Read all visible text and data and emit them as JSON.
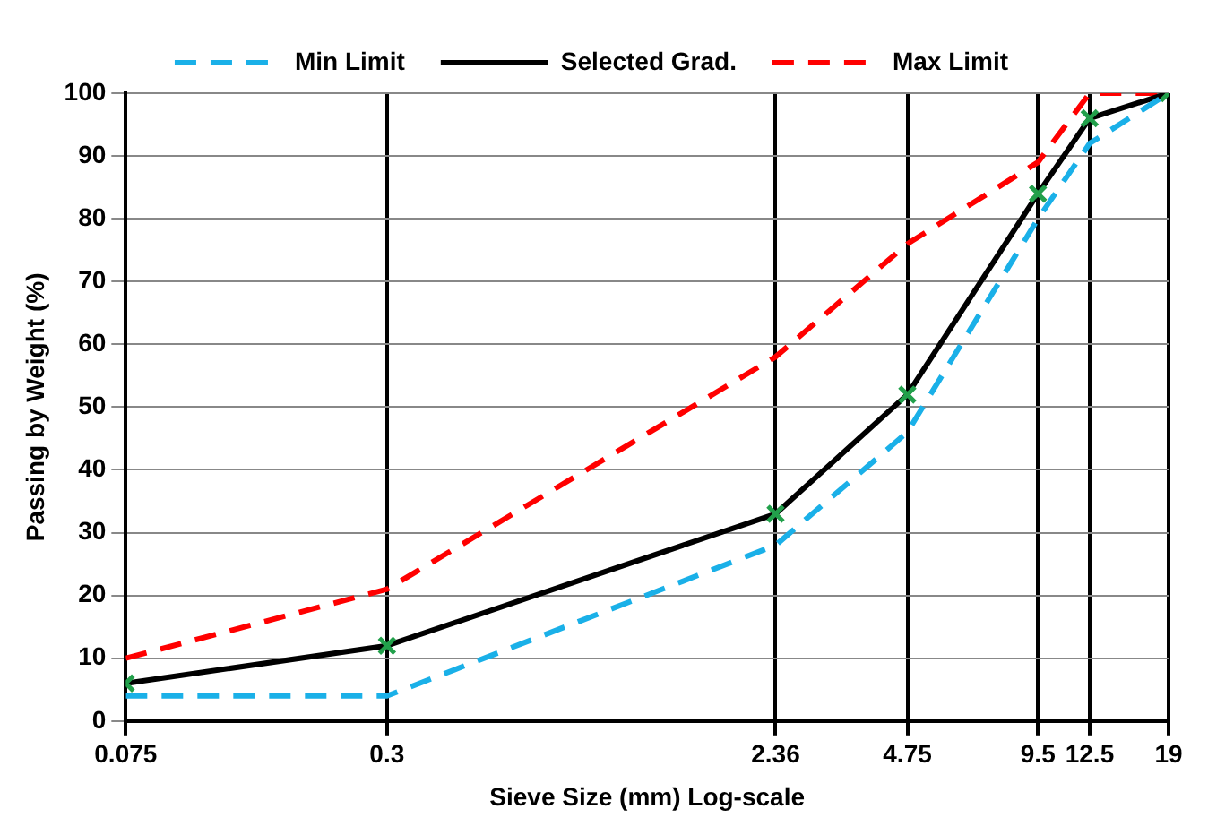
{
  "chart_data": {
    "type": "line",
    "xlabel": "Sieve Size (mm) Log-scale",
    "ylabel": "Passing by Weight (%)",
    "x": [
      0.075,
      0.3,
      2.36,
      4.75,
      9.5,
      12.5,
      19
    ],
    "series": [
      {
        "name": "Min Limit",
        "color": "#1ab0e8",
        "line_style": "dashed",
        "marker": "none",
        "values": [
          4,
          4,
          28,
          46,
          80,
          92,
          100
        ]
      },
      {
        "name": "Selected Grad.",
        "color": "#000000",
        "line_style": "solid",
        "marker": "cross",
        "values": [
          6,
          12,
          33,
          52,
          84,
          96,
          100
        ]
      },
      {
        "name": "Max Limit",
        "color": "#ff0000",
        "line_style": "dashed",
        "marker": "none",
        "values": [
          10,
          21,
          58,
          76,
          89,
          100,
          100
        ]
      }
    ],
    "log": "x",
    "xlim": [
      0.075,
      19
    ],
    "xticks": [
      0.075,
      0.3,
      2.36,
      4.75,
      9.5,
      12.5,
      19
    ],
    "ylim": [
      0,
      100
    ],
    "yticks": [
      0,
      10,
      20,
      30,
      40,
      50,
      60,
      70,
      80,
      90,
      100
    ],
    "grid": true,
    "legend": "top"
  }
}
